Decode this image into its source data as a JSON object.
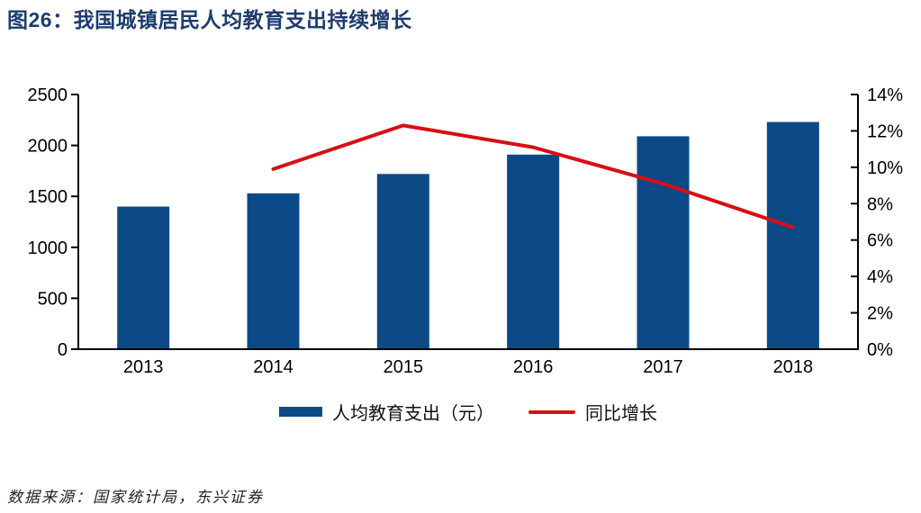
{
  "header": {
    "title": "图26：我国城镇居民人均教育支出持续增长"
  },
  "legend": {
    "bar_label": "人均教育支出（元）",
    "line_label": "同比增长"
  },
  "footer": {
    "source": "数据来源：国家统计局，东兴证券"
  },
  "colors": {
    "bar": "#0B4A87",
    "line": "#D80E15",
    "title": "#1E3C6E",
    "axis": "#000000"
  },
  "chart_data": {
    "type": "bar",
    "subtype": "bar+line combo",
    "title": "图26：我国城镇居民人均教育支出持续增长",
    "categories": [
      "2013",
      "2014",
      "2015",
      "2016",
      "2017",
      "2018"
    ],
    "series": [
      {
        "name": "人均教育支出（元）",
        "type": "bar",
        "axis": "left",
        "values": [
          1400,
          1530,
          1720,
          1910,
          2090,
          2230
        ]
      },
      {
        "name": "同比增长",
        "type": "line",
        "axis": "right",
        "unit": "%",
        "values": [
          null,
          9.9,
          12.3,
          11.1,
          9.1,
          6.7
        ]
      }
    ],
    "left_axis": {
      "min": 0,
      "max": 2500,
      "step": 500,
      "ticks": [
        "0",
        "500",
        "1000",
        "1500",
        "2000",
        "2500"
      ]
    },
    "right_axis": {
      "min": 0,
      "max": 14,
      "step": 2,
      "ticks": [
        "0%",
        "2%",
        "4%",
        "6%",
        "8%",
        "10%",
        "12%",
        "14%"
      ]
    },
    "grid": false,
    "legend_position": "bottom"
  }
}
